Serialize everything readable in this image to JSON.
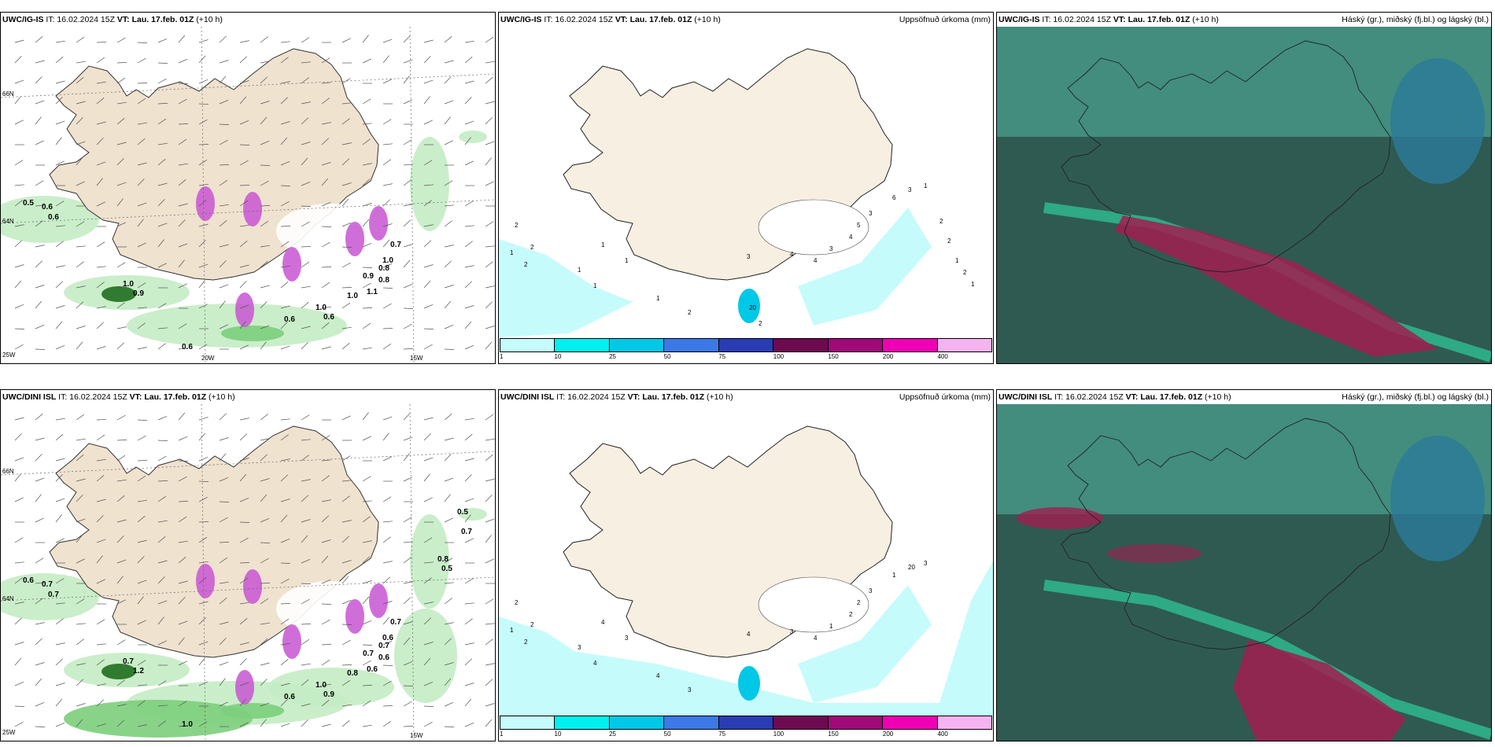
{
  "rows": [
    {
      "model": "UWC/IG-IS",
      "issue": "IT: 16.02.2024 15Z",
      "valid_label": "VT:",
      "valid": "Lau. 17.feb. 01Z",
      "lead": "(+10 h)",
      "wind_labels": [
        "0.5",
        "0.6",
        "0.6",
        "1.0",
        "0.9",
        "0.6",
        "0.6",
        "1.0",
        "0.6",
        "1.0",
        "0.9",
        "1.1",
        "0.8",
        "0.8",
        "1.0",
        "0.7"
      ],
      "precip_labels": [
        "2",
        "2",
        "1",
        "2",
        "1",
        "1",
        "1",
        "1",
        "1",
        "2",
        "3",
        "4",
        "4",
        "3",
        "4",
        "5",
        "3",
        "6",
        "3",
        "1",
        "2",
        "2",
        "1",
        "2",
        "1",
        "20",
        "2"
      ],
      "lat_labels": [
        "66N",
        "64N"
      ],
      "lon_labels": [
        "20W",
        "15W"
      ],
      "left_label": "25W"
    },
    {
      "model": "UWC/DINI ISL",
      "issue": "IT: 16.02.2024 15Z",
      "valid_label": "VT:",
      "valid": "Lau. 17.feb. 01Z",
      "lead": "(+10 h)",
      "wind_labels": [
        "0.6",
        "0.7",
        "0.7",
        "0.7",
        "1.2",
        "1.0",
        "0.6",
        "1.0",
        "0.9",
        "0.8",
        "0.7",
        "0.6",
        "0.6",
        "0.7",
        "0.6",
        "0.7",
        "0.8",
        "0.5",
        "0.5",
        "0.7"
      ],
      "precip_labels": [
        "2",
        "2",
        "1",
        "2",
        "3",
        "4",
        "4",
        "3",
        "4",
        "3",
        "4",
        "3",
        "4",
        "1",
        "2",
        "2",
        "3",
        "1",
        "20",
        "3"
      ],
      "lat_labels": [
        "66N",
        "64N"
      ],
      "lon_labels": [
        "15W"
      ],
      "left_label": "25W"
    }
  ],
  "precip_title": "Uppsöfnuð úrkoma (mm)",
  "cloud_title": "Háský (gr.), miðský (fj.bl.) og lágský (bl.)",
  "colorbar": {
    "ticks": [
      "1",
      "10",
      "25",
      "50",
      "75",
      "100",
      "150",
      "200",
      "400"
    ],
    "colors": [
      "#c6fbfb",
      "#00f0f0",
      "#00c8e6",
      "#3c78e6",
      "#2a3cb4",
      "#6e0a50",
      "#a00a78",
      "#f000b4",
      "#f5b4f0"
    ]
  },
  "colors": {
    "land": "#f7efe1",
    "land_wind": "#efe2cf",
    "sea_wind": "#ffffff",
    "green_light": "#c4ecc4",
    "green_mid": "#7cce7c",
    "green_dark": "#1f6e1f",
    "cyan_light": "#c6fbfb",
    "purple": "#c855d2",
    "cloud_dark": "#2f5a52",
    "cloud_teal": "#4aa392",
    "cloud_mint": "#2ee0a8",
    "cloud_red": "#a01e50",
    "cloud_blue": "#2a7a9a"
  }
}
